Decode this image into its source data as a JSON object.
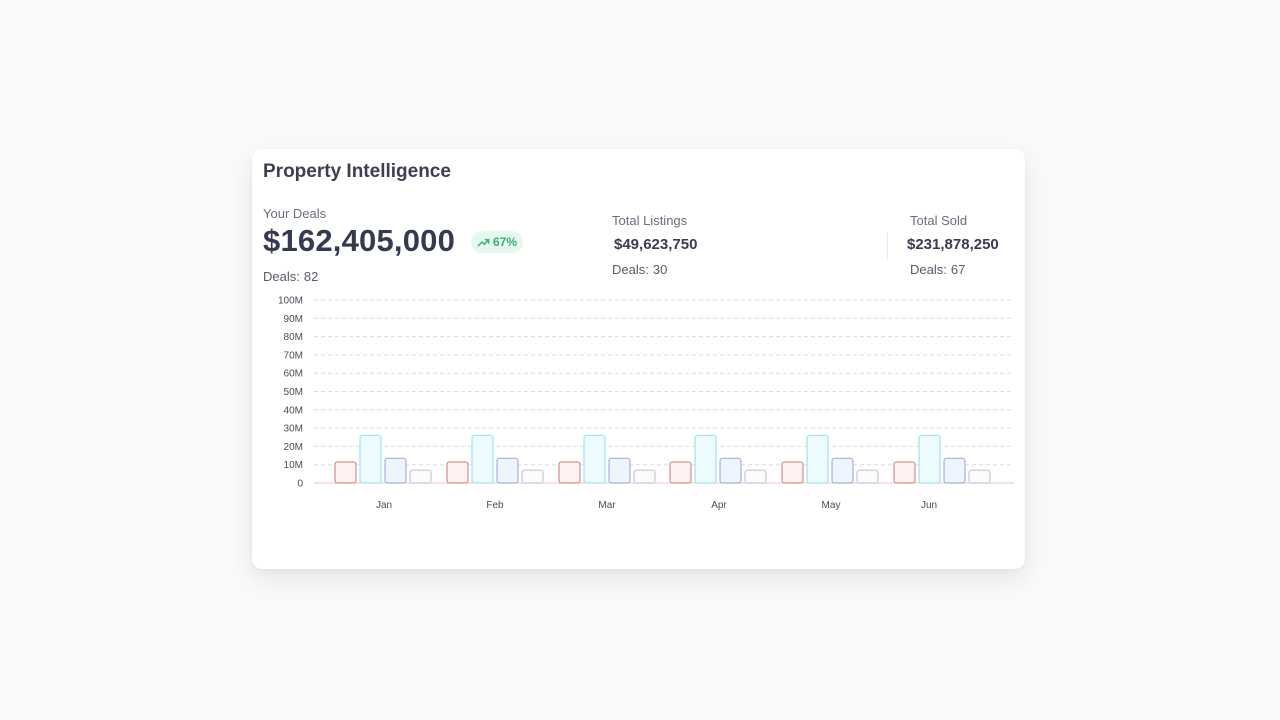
{
  "card": {
    "title": "Property Intelligence",
    "your_deals": {
      "label": "Your Deals",
      "value": "$162,405,000",
      "change": "67%",
      "deals_label": "Deals:",
      "deals_count": "82"
    },
    "total_listings": {
      "label": "Total Listings",
      "value": "$49,623,750",
      "deals_label": "Deals:",
      "deals_count": "30"
    },
    "total_sold": {
      "label": "Total Sold",
      "value": "$231,878,250",
      "deals_label": "Deals:",
      "deals_count": "67"
    },
    "icons": {
      "trend": "trending-up-icon"
    },
    "colors": {
      "badge_bg": "#e7f8ef",
      "badge_text": "#33b277"
    }
  },
  "chart_data": {
    "type": "bar",
    "categories": [
      "Jan",
      "Feb",
      "Mar",
      "Apr",
      "May",
      "Jun"
    ],
    "y_tick_labels": [
      "0",
      "10M",
      "20M",
      "30M",
      "40M",
      "50M",
      "60M",
      "70M",
      "80M",
      "90M",
      "100M"
    ],
    "ylim": [
      0,
      100000000
    ],
    "grid": true,
    "series": [
      {
        "color": "#d98b8b",
        "fill": "#fdf1f1",
        "values": [
          11500000,
          11500000,
          11500000,
          11500000,
          11500000,
          11500000
        ]
      },
      {
        "color": "#9fe3ee",
        "fill": "#eefbfd",
        "values": [
          26000000,
          26000000,
          26000000,
          26000000,
          26000000,
          26000000
        ]
      },
      {
        "color": "#9fb5dc",
        "fill": "#eff4fc",
        "values": [
          13500000,
          13500000,
          13500000,
          13500000,
          13500000,
          13500000
        ]
      },
      {
        "color": "#c9c9cf",
        "fill": "#fbfbfc",
        "values": [
          7000000,
          7000000,
          7000000,
          7000000,
          7000000,
          7000000
        ]
      }
    ]
  }
}
